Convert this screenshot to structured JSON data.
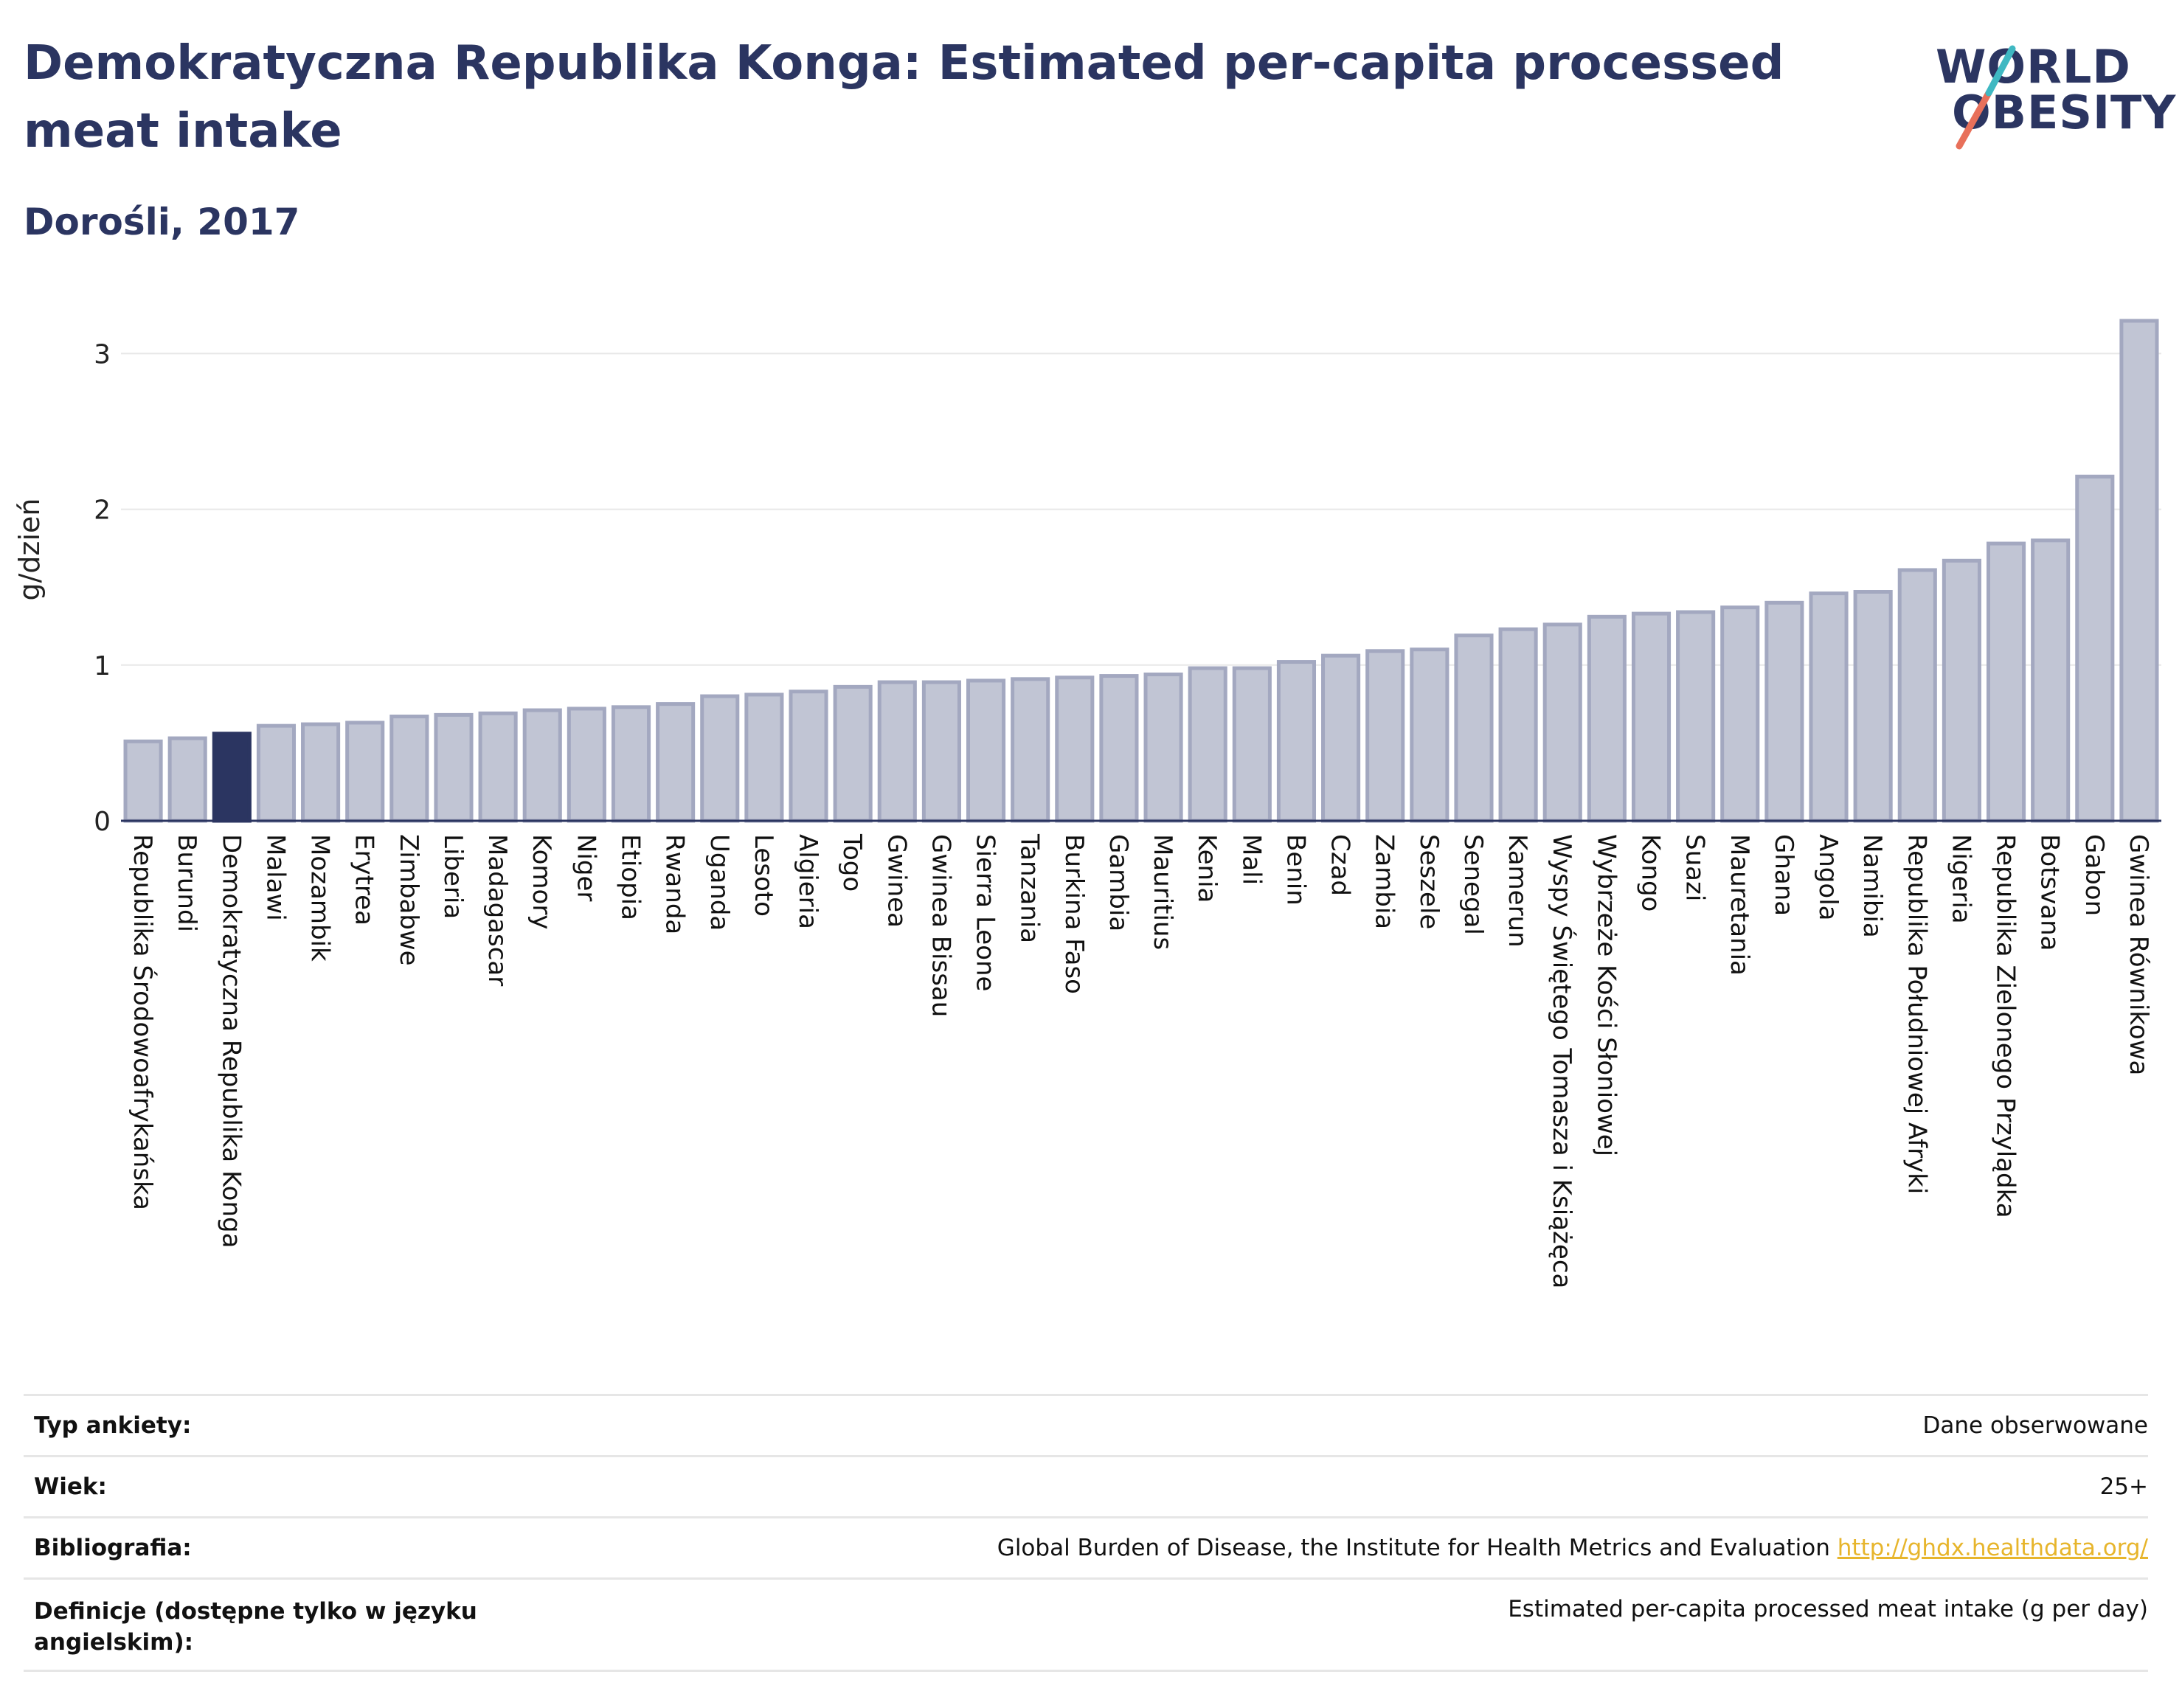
{
  "header": {
    "title": "Demokratyczna Republika Konga: Estimated per-capita processed meat intake",
    "subtitle": "Dorośli, 2017"
  },
  "logo": {
    "line1": "WORLD",
    "line2": "OBESITY",
    "colors": [
      "#2b3561",
      "#e8705a",
      "#3fb8c2"
    ]
  },
  "colors": {
    "bar": "#c1c5d4",
    "bar_border": "#a3a8c0",
    "highlight": "#2b3561",
    "axis": "#2b3561",
    "grid": "#e8e8e8"
  },
  "chart_data": {
    "type": "bar",
    "ylabel": "g/dzień",
    "xlabel": "",
    "ylim": [
      0,
      3.3
    ],
    "yticks": [
      0,
      1,
      2,
      3
    ],
    "grid": true,
    "highlight": "Demokratyczna Republika Konga",
    "categories": [
      "Republika Środowoafrykańska",
      "Burundi",
      "Demokratyczna Republika Konga",
      "Malawi",
      "Mozambik",
      "Erytrea",
      "Zimbabwe",
      "Liberia",
      "Madagascar",
      "Komory",
      "Niger",
      "Etiopia",
      "Rwanda",
      "Uganda",
      "Lesoto",
      "Algieria",
      "Togo",
      "Gwinea",
      "Gwinea Bissau",
      "Sierra Leone",
      "Tanzania",
      "Burkina Faso",
      "Gambia",
      "Mauritius",
      "Kenia",
      "Mali",
      "Benin",
      "Czad",
      "Zambia",
      "Seszele",
      "Senegal",
      "Kamerun",
      "Wyspy Świętego Tomasza i Książęca",
      "Wybrzeże Kości Słoniowej",
      "Kongo",
      "Suazi",
      "Mauretania",
      "Ghana",
      "Angola",
      "Namibia",
      "Republika Południowej Afryki",
      "Nigeria",
      "Republika Zielonego Przylądka",
      "Botsvana",
      "Gabon",
      "Gwinea Równikowa"
    ],
    "values": [
      0.51,
      0.53,
      0.56,
      0.61,
      0.62,
      0.63,
      0.67,
      0.68,
      0.69,
      0.71,
      0.72,
      0.73,
      0.75,
      0.8,
      0.81,
      0.83,
      0.86,
      0.89,
      0.89,
      0.9,
      0.91,
      0.92,
      0.93,
      0.94,
      0.98,
      0.98,
      1.02,
      1.06,
      1.09,
      1.1,
      1.19,
      1.23,
      1.26,
      1.31,
      1.33,
      1.34,
      1.37,
      1.4,
      1.46,
      1.47,
      1.61,
      1.67,
      1.78,
      1.8,
      2.21,
      3.21
    ]
  },
  "info": [
    {
      "label": "Typ ankiety:",
      "value": "Dane obserwowane"
    },
    {
      "label": "Wiek:",
      "value": "25+"
    },
    {
      "label": "Bibliografia:",
      "value": "Global Burden of Disease, the Institute for Health Metrics and Evaluation",
      "link": "http://ghdx.healthdata.org/"
    },
    {
      "label": "Definicje (dostępne tylko w języku angielskim):",
      "value": "Estimated per-capita processed meat intake (g per day)"
    }
  ]
}
